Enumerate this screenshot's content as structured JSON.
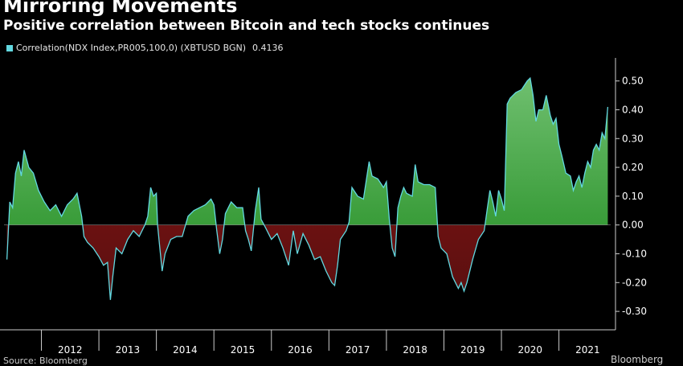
{
  "title": "Mirroring Movements",
  "subtitle": "Positive correlation between Bitcoin and tech stocks continues",
  "legend": {
    "label": "Correlation(NDX Index,PR005,100,0) (XBTUSD BGN)",
    "last_value": "0.4136"
  },
  "colors": {
    "line": "#62d8e0",
    "positive_fill": "#1d8a1d",
    "negative_fill": "#8b1414",
    "background": "#000000",
    "axis_text": "#ffffff",
    "grid": "#333333"
  },
  "footer": {
    "source": "Source: Bloomberg",
    "brand": "Bloomberg"
  },
  "chart_data": {
    "type": "area",
    "x_unit": "year",
    "xlim": [
      2011.35,
      2021.9
    ],
    "ylim": [
      -0.35,
      0.58
    ],
    "y_ticks": [
      0.5,
      0.4,
      0.3,
      0.2,
      0.1,
      0.0,
      -0.1,
      -0.2,
      -0.3
    ],
    "y_tick_labels": [
      "0.50",
      "0.40",
      "0.30",
      "0.20",
      "0.10",
      "0.00",
      "-0.10",
      "-0.20",
      "-0.30"
    ],
    "x_tick_labels": [
      "2012",
      "2013",
      "2014",
      "2015",
      "2016",
      "2017",
      "2018",
      "2019",
      "2020",
      "2021"
    ],
    "grid": false,
    "legend_position": "top-left",
    "series": [
      {
        "name": "Correlation(NDX Index,PR005,100,0) (XBTUSD BGN)",
        "last_value": 0.4136,
        "points": [
          [
            2011.4,
            -0.12
          ],
          [
            2011.45,
            0.08
          ],
          [
            2011.5,
            0.06
          ],
          [
            2011.55,
            0.18
          ],
          [
            2011.6,
            0.22
          ],
          [
            2011.65,
            0.17
          ],
          [
            2011.7,
            0.26
          ],
          [
            2011.78,
            0.2
          ],
          [
            2011.86,
            0.18
          ],
          [
            2011.95,
            0.12
          ],
          [
            2012.0,
            0.1
          ],
          [
            2012.05,
            0.08
          ],
          [
            2012.15,
            0.05
          ],
          [
            2012.25,
            0.07
          ],
          [
            2012.35,
            0.03
          ],
          [
            2012.45,
            0.07
          ],
          [
            2012.55,
            0.09
          ],
          [
            2012.62,
            0.11
          ],
          [
            2012.7,
            0.03
          ],
          [
            2012.74,
            -0.04
          ],
          [
            2012.8,
            -0.06
          ],
          [
            2012.9,
            -0.08
          ],
          [
            2013.0,
            -0.11
          ],
          [
            2013.08,
            -0.14
          ],
          [
            2013.15,
            -0.13
          ],
          [
            2013.2,
            -0.26
          ],
          [
            2013.24,
            -0.18
          ],
          [
            2013.3,
            -0.08
          ],
          [
            2013.4,
            -0.1
          ],
          [
            2013.5,
            -0.05
          ],
          [
            2013.6,
            -0.02
          ],
          [
            2013.7,
            -0.04
          ],
          [
            2013.8,
            0.0
          ],
          [
            2013.85,
            0.03
          ],
          [
            2013.9,
            0.13
          ],
          [
            2013.95,
            0.1
          ],
          [
            2014.0,
            0.11
          ],
          [
            2014.02,
            0.0
          ],
          [
            2014.05,
            -0.06
          ],
          [
            2014.1,
            -0.16
          ],
          [
            2014.15,
            -0.1
          ],
          [
            2014.25,
            -0.05
          ],
          [
            2014.35,
            -0.04
          ],
          [
            2014.45,
            -0.04
          ],
          [
            2014.55,
            0.03
          ],
          [
            2014.65,
            0.05
          ],
          [
            2014.75,
            0.06
          ],
          [
            2014.85,
            0.07
          ],
          [
            2014.95,
            0.09
          ],
          [
            2015.0,
            0.07
          ],
          [
            2015.05,
            -0.02
          ],
          [
            2015.1,
            -0.1
          ],
          [
            2015.15,
            -0.05
          ],
          [
            2015.2,
            0.04
          ],
          [
            2015.3,
            0.08
          ],
          [
            2015.4,
            0.06
          ],
          [
            2015.5,
            0.06
          ],
          [
            2015.55,
            -0.02
          ],
          [
            2015.6,
            -0.05
          ],
          [
            2015.65,
            -0.09
          ],
          [
            2015.72,
            0.05
          ],
          [
            2015.78,
            0.13
          ],
          [
            2015.82,
            0.02
          ],
          [
            2015.9,
            -0.01
          ],
          [
            2016.0,
            -0.05
          ],
          [
            2016.1,
            -0.03
          ],
          [
            2016.2,
            -0.08
          ],
          [
            2016.3,
            -0.14
          ],
          [
            2016.38,
            -0.02
          ],
          [
            2016.45,
            -0.1
          ],
          [
            2016.55,
            -0.03
          ],
          [
            2016.65,
            -0.07
          ],
          [
            2016.75,
            -0.12
          ],
          [
            2016.85,
            -0.11
          ],
          [
            2016.95,
            -0.16
          ],
          [
            2017.05,
            -0.2
          ],
          [
            2017.1,
            -0.21
          ],
          [
            2017.15,
            -0.14
          ],
          [
            2017.2,
            -0.05
          ],
          [
            2017.3,
            -0.02
          ],
          [
            2017.35,
            0.01
          ],
          [
            2017.4,
            0.13
          ],
          [
            2017.5,
            0.1
          ],
          [
            2017.6,
            0.09
          ],
          [
            2017.7,
            0.22
          ],
          [
            2017.75,
            0.17
          ],
          [
            2017.85,
            0.16
          ],
          [
            2017.95,
            0.13
          ],
          [
            2018.0,
            0.15
          ],
          [
            2018.05,
            0.02
          ],
          [
            2018.1,
            -0.08
          ],
          [
            2018.15,
            -0.11
          ],
          [
            2018.2,
            0.06
          ],
          [
            2018.25,
            0.1
          ],
          [
            2018.3,
            0.13
          ],
          [
            2018.35,
            0.11
          ],
          [
            2018.45,
            0.1
          ],
          [
            2018.5,
            0.21
          ],
          [
            2018.55,
            0.15
          ],
          [
            2018.65,
            0.14
          ],
          [
            2018.75,
            0.14
          ],
          [
            2018.85,
            0.13
          ],
          [
            2018.9,
            -0.04
          ],
          [
            2018.95,
            -0.08
          ],
          [
            2019.05,
            -0.1
          ],
          [
            2019.15,
            -0.18
          ],
          [
            2019.25,
            -0.22
          ],
          [
            2019.3,
            -0.2
          ],
          [
            2019.35,
            -0.23
          ],
          [
            2019.4,
            -0.2
          ],
          [
            2019.5,
            -0.12
          ],
          [
            2019.6,
            -0.05
          ],
          [
            2019.7,
            -0.02
          ],
          [
            2019.75,
            0.05
          ],
          [
            2019.8,
            0.12
          ],
          [
            2019.85,
            0.08
          ],
          [
            2019.9,
            0.03
          ],
          [
            2019.95,
            0.12
          ],
          [
            2020.0,
            0.09
          ],
          [
            2020.05,
            0.05
          ],
          [
            2020.1,
            0.42
          ],
          [
            2020.15,
            0.44
          ],
          [
            2020.25,
            0.46
          ],
          [
            2020.35,
            0.47
          ],
          [
            2020.45,
            0.5
          ],
          [
            2020.5,
            0.51
          ],
          [
            2020.55,
            0.45
          ],
          [
            2020.6,
            0.36
          ],
          [
            2020.65,
            0.4
          ],
          [
            2020.72,
            0.4
          ],
          [
            2020.78,
            0.45
          ],
          [
            2020.85,
            0.38
          ],
          [
            2020.9,
            0.35
          ],
          [
            2020.95,
            0.37
          ],
          [
            2021.0,
            0.28
          ],
          [
            2021.05,
            0.24
          ],
          [
            2021.12,
            0.18
          ],
          [
            2021.2,
            0.17
          ],
          [
            2021.25,
            0.12
          ],
          [
            2021.3,
            0.15
          ],
          [
            2021.35,
            0.17
          ],
          [
            2021.4,
            0.13
          ],
          [
            2021.45,
            0.18
          ],
          [
            2021.5,
            0.22
          ],
          [
            2021.55,
            0.2
          ],
          [
            2021.6,
            0.26
          ],
          [
            2021.65,
            0.28
          ],
          [
            2021.7,
            0.26
          ],
          [
            2021.75,
            0.32
          ],
          [
            2021.8,
            0.3
          ],
          [
            2021.85,
            0.41
          ]
        ]
      }
    ]
  }
}
